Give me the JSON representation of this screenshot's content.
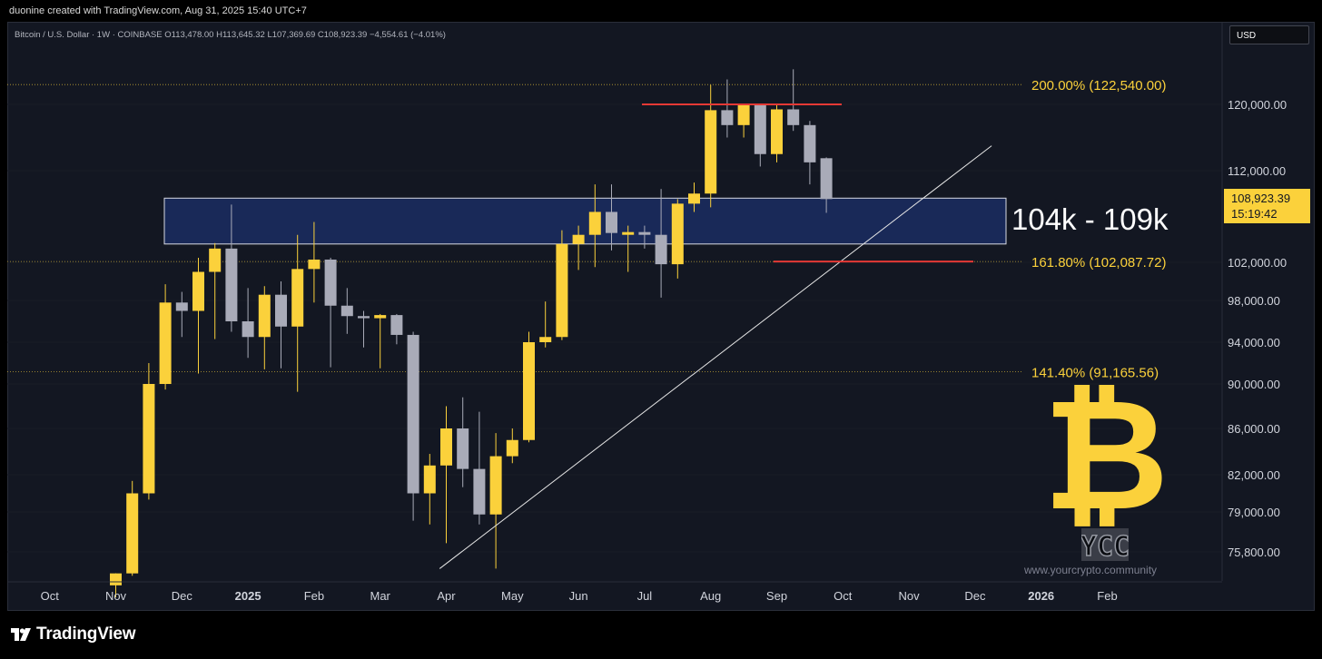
{
  "header": {
    "text": "duonine created with TradingView.com, Aug 31, 2025 15:40 UTC+7"
  },
  "legend": {
    "text": "Bitcoin / U.S. Dollar · 1W · COINBASE  O113,478.00  H113,645.32  L107,369.69  C108,923.39  −4,554.61 (−4.01%)"
  },
  "currency_button": "USD",
  "price_tag": {
    "price": "108,923.39",
    "countdown": "15:19:42"
  },
  "zone_label": "104k - 109k",
  "fib_levels": [
    {
      "label": "200.00% (122,540.00)",
      "price": 122540.0
    },
    {
      "label": "161.80% (102,087.72)",
      "price": 102087.72
    },
    {
      "label": "141.40% (91,165.56)",
      "price": 91165.56
    }
  ],
  "watermark_url": "www.yourcrypto.community",
  "ycc_text": "YCC",
  "brand": "TradingView",
  "colors": {
    "up": "#fbd13b",
    "down": "#a9abb8",
    "bg": "#131722",
    "fib": "#fbd13b",
    "red": "#e53935",
    "zone": "#192a5c"
  },
  "chart_data": {
    "type": "candlestick",
    "title": "Bitcoin / U.S. Dollar · 1W · COINBASE",
    "yticks": [
      120000,
      112000,
      102000,
      98000,
      94000,
      90000,
      86000,
      82000,
      79000,
      75800
    ],
    "ytick_labels": [
      "120,000.00",
      "112,000.00",
      "102,000.00",
      "98,000.00",
      "94,000.00",
      "90,000.00",
      "86,000.00",
      "82,000.00",
      "79,000.00",
      "75,800.00"
    ],
    "xticks": [
      {
        "label": "Oct",
        "bold": false,
        "week": -5.0
      },
      {
        "label": "Nov",
        "bold": false,
        "week": -1.0
      },
      {
        "label": "Dec",
        "bold": false,
        "week": 3.0
      },
      {
        "label": "2025",
        "bold": true,
        "week": 7.0
      },
      {
        "label": "Feb",
        "bold": false,
        "week": 11.0
      },
      {
        "label": "Mar",
        "bold": false,
        "week": 15.0
      },
      {
        "label": "Apr",
        "bold": false,
        "week": 19.0
      },
      {
        "label": "May",
        "bold": false,
        "week": 23.0
      },
      {
        "label": "Jun",
        "bold": false,
        "week": 27.0
      },
      {
        "label": "Jul",
        "bold": false,
        "week": 31.0
      },
      {
        "label": "Aug",
        "bold": false,
        "week": 35.0
      },
      {
        "label": "Sep",
        "bold": false,
        "week": 39.0
      },
      {
        "label": "Oct",
        "bold": false,
        "week": 43.0
      },
      {
        "label": "Nov",
        "bold": false,
        "week": 47.0
      },
      {
        "label": "Dec",
        "bold": false,
        "week": 51.0
      },
      {
        "label": "2026",
        "bold": true,
        "week": 55.0
      },
      {
        "label": "Feb",
        "bold": false,
        "week": 59.0
      }
    ],
    "candles": [
      {
        "o": 73000,
        "h": 74000,
        "l": 72000,
        "c": 74000
      },
      {
        "o": 74000,
        "h": 81500,
        "l": 73800,
        "c": 80500
      },
      {
        "o": 80500,
        "h": 92000,
        "l": 80000,
        "c": 90000
      },
      {
        "o": 90000,
        "h": 99700,
        "l": 89500,
        "c": 97800
      },
      {
        "o": 97800,
        "h": 98900,
        "l": 94500,
        "c": 97000
      },
      {
        "o": 97000,
        "h": 102500,
        "l": 91000,
        "c": 101000
      },
      {
        "o": 101000,
        "h": 104100,
        "l": 94300,
        "c": 103500
      },
      {
        "o": 103500,
        "h": 108300,
        "l": 95000,
        "c": 96000
      },
      {
        "o": 96000,
        "h": 99300,
        "l": 92500,
        "c": 94500
      },
      {
        "o": 94500,
        "h": 99500,
        "l": 91400,
        "c": 98600
      },
      {
        "o": 98600,
        "h": 100000,
        "l": 91500,
        "c": 95500
      },
      {
        "o": 95500,
        "h": 105000,
        "l": 89300,
        "c": 101300
      },
      {
        "o": 101300,
        "h": 106400,
        "l": 97800,
        "c": 102300
      },
      {
        "o": 102300,
        "h": 102500,
        "l": 91600,
        "c": 97500
      },
      {
        "o": 97500,
        "h": 99300,
        "l": 94800,
        "c": 96500
      },
      {
        "o": 96500,
        "h": 97000,
        "l": 93500,
        "c": 96300
      },
      {
        "o": 96300,
        "h": 96700,
        "l": 91500,
        "c": 96600
      },
      {
        "o": 96600,
        "h": 96700,
        "l": 93800,
        "c": 94700
      },
      {
        "o": 94700,
        "h": 95000,
        "l": 78300,
        "c": 80500
      },
      {
        "o": 80500,
        "h": 83800,
        "l": 78000,
        "c": 82800
      },
      {
        "o": 82800,
        "h": 88000,
        "l": 76500,
        "c": 86000
      },
      {
        "o": 86000,
        "h": 88800,
        "l": 81000,
        "c": 82500
      },
      {
        "o": 82500,
        "h": 87500,
        "l": 78000,
        "c": 78800
      },
      {
        "o": 78800,
        "h": 85600,
        "l": 74400,
        "c": 83600
      },
      {
        "o": 83600,
        "h": 86000,
        "l": 83000,
        "c": 85000
      },
      {
        "o": 85000,
        "h": 95000,
        "l": 84800,
        "c": 94000
      },
      {
        "o": 94000,
        "h": 97900,
        "l": 93500,
        "c": 94500
      },
      {
        "o": 94500,
        "h": 105500,
        "l": 94200,
        "c": 104000
      },
      {
        "o": 104000,
        "h": 106000,
        "l": 101200,
        "c": 105000
      },
      {
        "o": 105000,
        "h": 110500,
        "l": 101500,
        "c": 107500
      },
      {
        "o": 107500,
        "h": 110500,
        "l": 103300,
        "c": 105200
      },
      {
        "o": 105000,
        "h": 106000,
        "l": 101000,
        "c": 105300
      },
      {
        "o": 105300,
        "h": 106000,
        "l": 103500,
        "c": 105000
      },
      {
        "o": 105000,
        "h": 110000,
        "l": 98300,
        "c": 101800
      },
      {
        "o": 101800,
        "h": 108900,
        "l": 100300,
        "c": 108400
      },
      {
        "o": 108400,
        "h": 110700,
        "l": 107500,
        "c": 109500
      },
      {
        "o": 109500,
        "h": 122500,
        "l": 108000,
        "c": 119300
      },
      {
        "o": 119300,
        "h": 123200,
        "l": 116000,
        "c": 117500
      },
      {
        "o": 117500,
        "h": 120000,
        "l": 116000,
        "c": 119900
      },
      {
        "o": 119900,
        "h": 120000,
        "l": 112500,
        "c": 114000
      },
      {
        "o": 114000,
        "h": 120000,
        "l": 113000,
        "c": 119400
      },
      {
        "o": 119400,
        "h": 124500,
        "l": 116800,
        "c": 117500
      },
      {
        "o": 117500,
        "h": 118000,
        "l": 110500,
        "c": 113000
      },
      {
        "o": 113500,
        "h": 113600,
        "l": 107400,
        "c": 108900
      }
    ],
    "first_candle_week": -1.0,
    "zone": {
      "low": 104000,
      "high": 109000,
      "label": "104k - 109k"
    },
    "resistance_line": {
      "price": 120000
    },
    "support_line": {
      "price": 102087.72
    },
    "trendline": {
      "from": {
        "week": 18.6,
        "price": 74400
      },
      "to": {
        "week": 52.0,
        "price": 115000
      }
    }
  }
}
